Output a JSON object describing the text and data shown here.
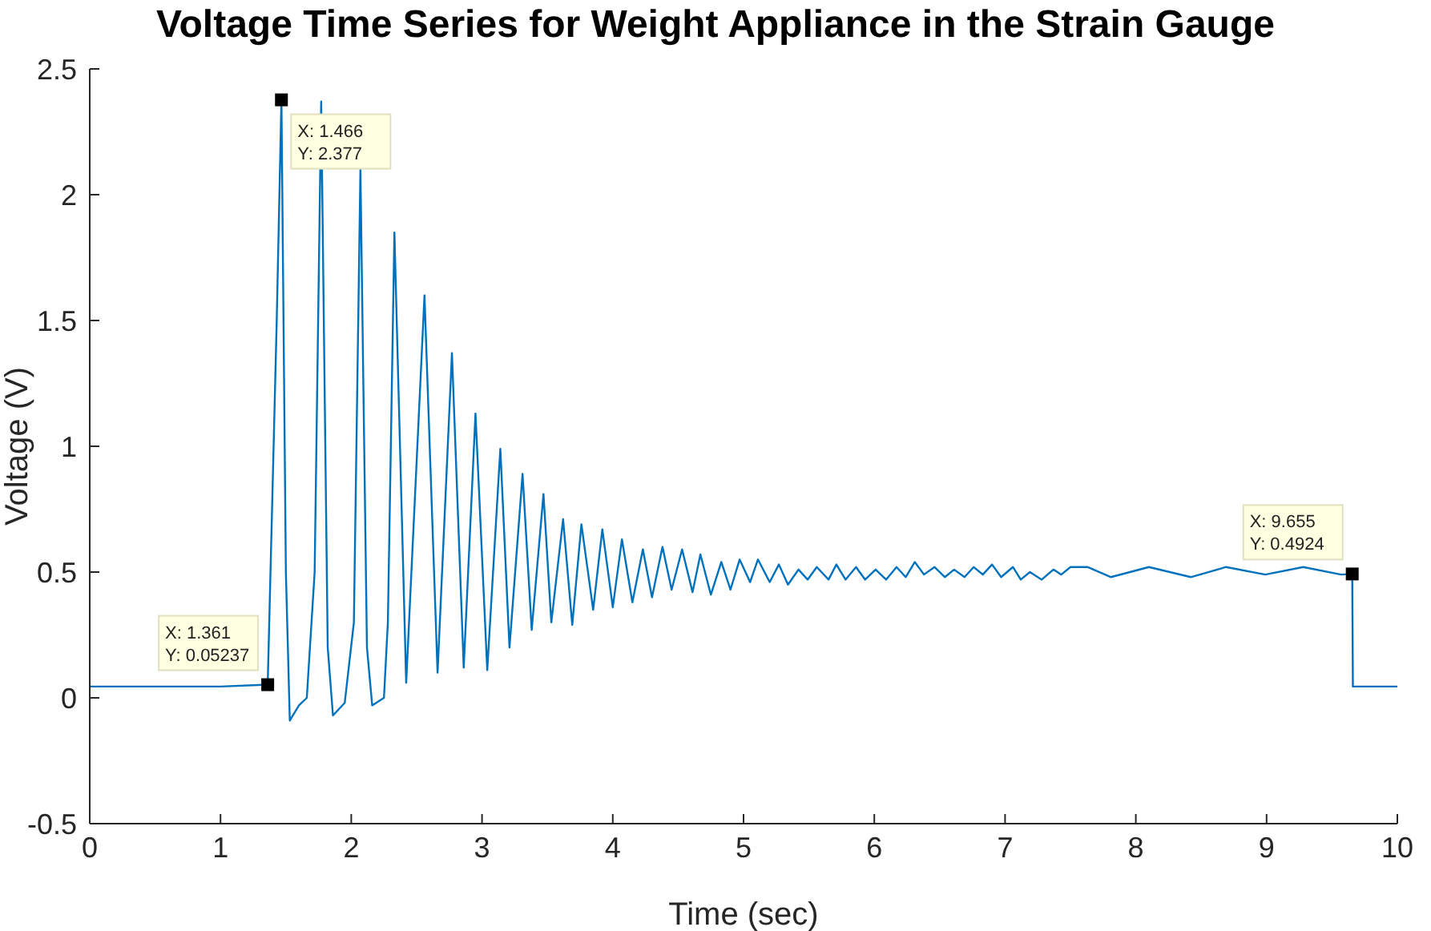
{
  "chart_data": {
    "type": "line",
    "title": "Voltage Time Series for Weight Appliance in the Strain Gauge",
    "xlabel": "Time (sec)",
    "ylabel": "Voltage (V)",
    "x": [
      0,
      0.5,
      1.0,
      1.361,
      1.43,
      1.466,
      1.5,
      1.53,
      1.6,
      1.66,
      1.72,
      1.77,
      1.82,
      1.86,
      1.95,
      2.02,
      2.07,
      2.12,
      2.16,
      2.25,
      2.28,
      2.33,
      2.42,
      2.56,
      2.66,
      2.77,
      2.86,
      2.95,
      3.04,
      3.14,
      3.21,
      3.31,
      3.38,
      3.47,
      3.53,
      3.62,
      3.69,
      3.76,
      3.85,
      3.92,
      4.0,
      4.07,
      4.15,
      4.23,
      4.3,
      4.38,
      4.45,
      4.53,
      4.61,
      4.67,
      4.75,
      4.83,
      4.9,
      4.97,
      5.05,
      5.11,
      5.2,
      5.27,
      5.34,
      5.42,
      5.49,
      5.56,
      5.65,
      5.71,
      5.78,
      5.86,
      5.93,
      6.01,
      6.09,
      6.17,
      6.24,
      6.31,
      6.38,
      6.46,
      6.54,
      6.61,
      6.69,
      6.76,
      6.83,
      6.9,
      6.97,
      7.06,
      7.12,
      7.19,
      7.28,
      7.37,
      7.43,
      7.5,
      7.63,
      7.81,
      8.1,
      8.42,
      8.69,
      8.99,
      9.28,
      9.57,
      9.655,
      9.66,
      10
    ],
    "series": [
      {
        "color": "#0072bd",
        "values": [
          0.045,
          0.045,
          0.045,
          0.05237,
          1.5,
          2.377,
          0.5,
          -0.09,
          -0.03,
          0.0,
          0.5,
          2.37,
          0.2,
          -0.07,
          -0.02,
          0.3,
          2.1,
          0.2,
          -0.03,
          0.0,
          0.3,
          1.85,
          0.06,
          1.6,
          0.1,
          1.37,
          0.12,
          1.13,
          0.11,
          0.99,
          0.2,
          0.89,
          0.27,
          0.81,
          0.3,
          0.71,
          0.29,
          0.69,
          0.35,
          0.67,
          0.36,
          0.63,
          0.38,
          0.59,
          0.4,
          0.6,
          0.43,
          0.59,
          0.42,
          0.57,
          0.41,
          0.54,
          0.43,
          0.55,
          0.46,
          0.55,
          0.46,
          0.53,
          0.45,
          0.51,
          0.47,
          0.52,
          0.47,
          0.53,
          0.47,
          0.52,
          0.47,
          0.51,
          0.47,
          0.52,
          0.48,
          0.54,
          0.49,
          0.52,
          0.48,
          0.51,
          0.48,
          0.52,
          0.49,
          0.53,
          0.48,
          0.52,
          0.47,
          0.5,
          0.47,
          0.51,
          0.49,
          0.52,
          0.52,
          0.48,
          0.52,
          0.48,
          0.52,
          0.49,
          0.52,
          0.49,
          0.4924,
          0.045,
          0.045
        ]
      }
    ],
    "xlim": [
      0,
      10
    ],
    "xticks": [
      0,
      1,
      2,
      3,
      4,
      5,
      6,
      7,
      8,
      9,
      10
    ],
    "ylim": [
      -0.5,
      2.5
    ],
    "yticks": [
      -0.5,
      0,
      0.5,
      1,
      1.5,
      2,
      2.5
    ],
    "grid": false,
    "legend": false,
    "marker": "none",
    "line_style": "solid",
    "annotations": [
      {
        "text": "X: 1.466\nY: 2.377",
        "x": 1.466,
        "y": 2.377
      },
      {
        "text": "X: 1.361\nY: 0.05237",
        "x": 1.361,
        "y": 0.05237
      },
      {
        "text": "X: 9.655\nY: 0.4924",
        "x": 9.655,
        "y": 0.4924
      }
    ]
  }
}
